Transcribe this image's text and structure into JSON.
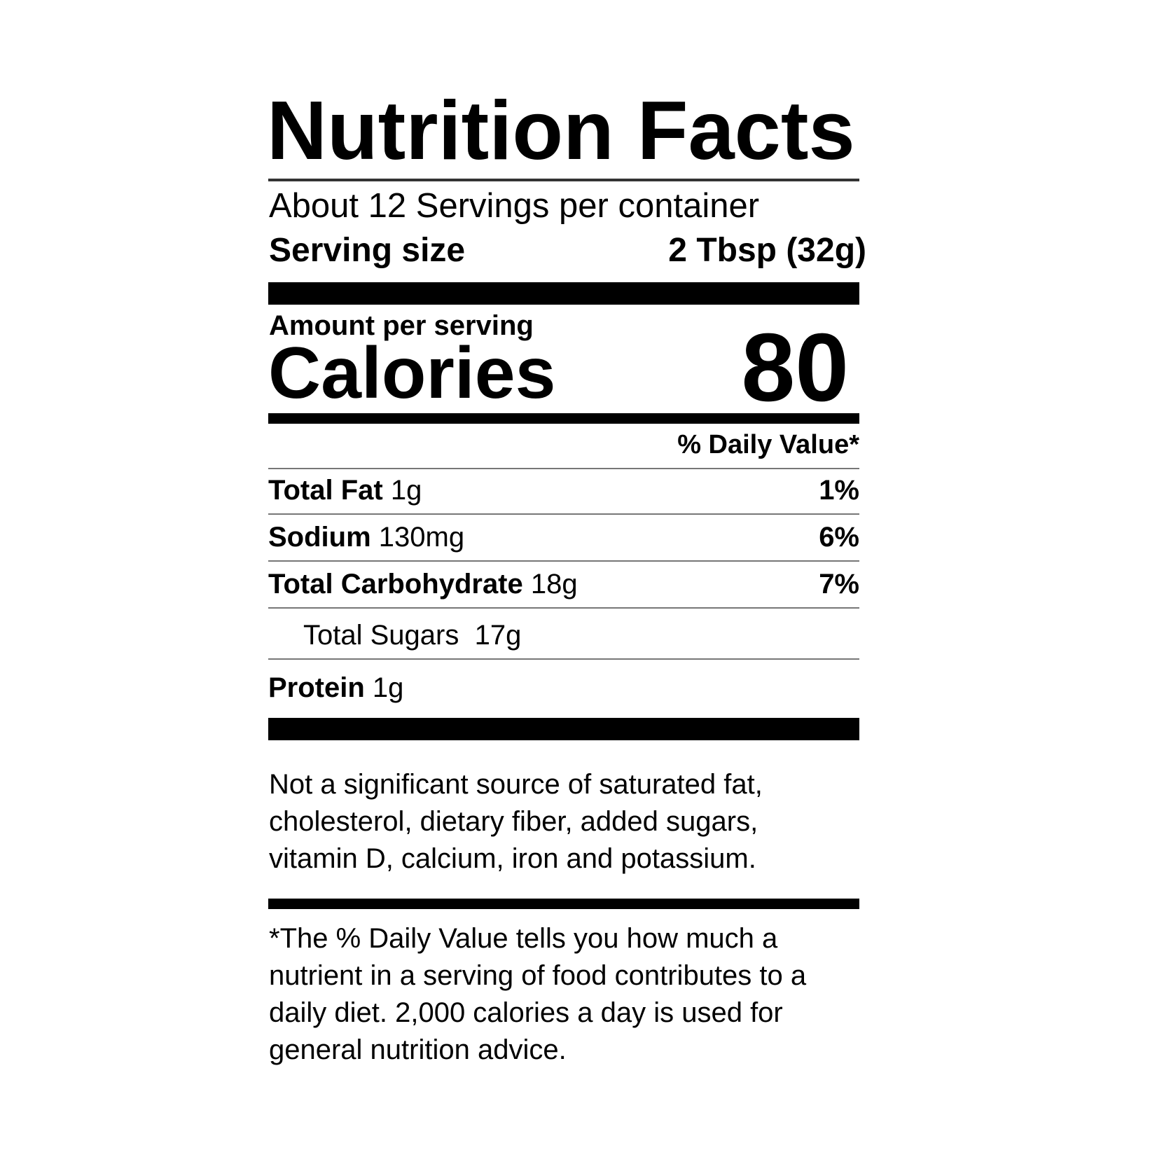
{
  "title": "Nutrition Facts",
  "servings_per_container": "About 12 Servings per container",
  "serving_size": {
    "label": "Serving size",
    "value": "2 Tbsp (32g)"
  },
  "amount_per_serving": "Amount per serving",
  "calories": {
    "label": "Calories",
    "value": "80"
  },
  "daily_value_header": "% Daily Value*",
  "nutrients": [
    {
      "name": "Total Fat",
      "amount": "1g",
      "dv": "1%"
    },
    {
      "name": "Sodium",
      "amount": "130mg",
      "dv": "6%"
    },
    {
      "name": "Total Carbohydrate",
      "amount": "18g",
      "dv": "7%"
    },
    {
      "name": "Total Sugars",
      "amount": "17g",
      "dv": ""
    },
    {
      "name": "Protein",
      "amount": "1g",
      "dv": ""
    }
  ],
  "not_significant_note": "Not a significant source of saturated fat, cholesterol, dietary fiber, added sugars, vitamin D, calcium, iron and potassium.",
  "footnote": "*The % Daily Value tells you how much a nutrient in a serving of food contributes to a daily diet. 2,000 calories a day is used for general nutrition advice."
}
